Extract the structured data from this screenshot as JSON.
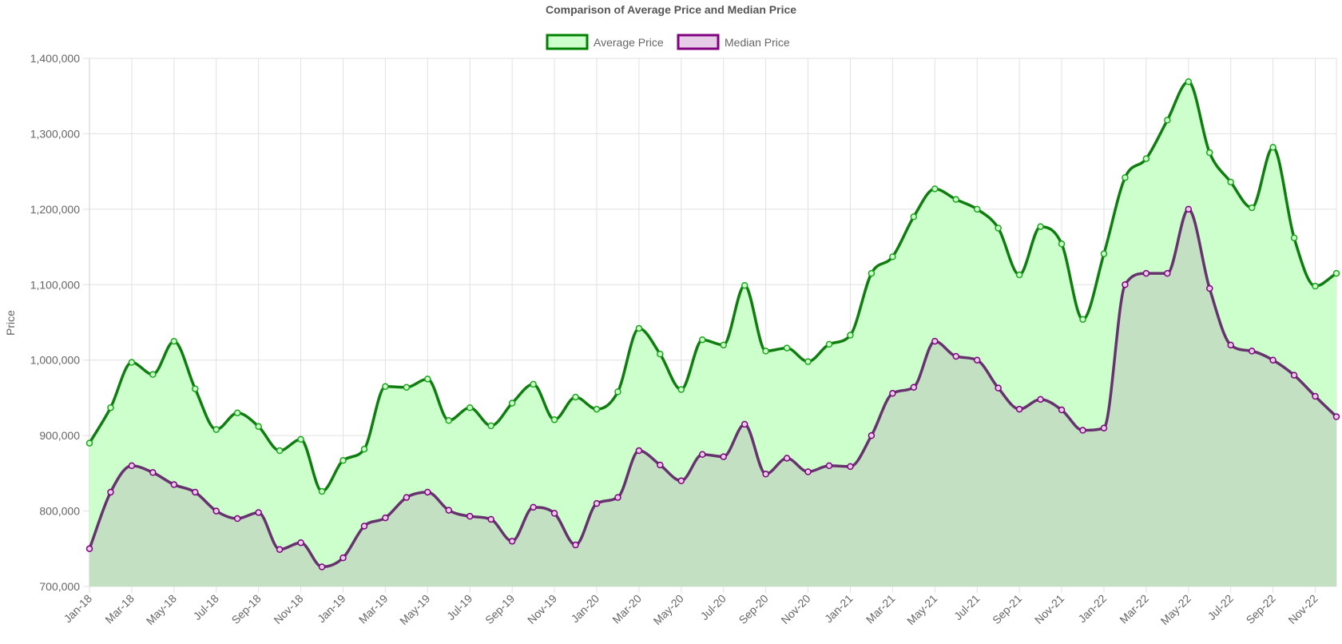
{
  "chart_data": {
    "type": "area",
    "title": "Comparison of Average Price and Median Price",
    "xlabel": "",
    "ylabel": "Price",
    "ylim": [
      700000,
      1400000
    ],
    "yticks": [
      700000,
      800000,
      900000,
      1000000,
      1100000,
      1200000,
      1300000,
      1400000
    ],
    "grid": true,
    "legend_position": "top-center",
    "x": [
      "Jan-18",
      "Feb-18",
      "Mar-18",
      "Apr-18",
      "May-18",
      "Jun-18",
      "Jul-18",
      "Aug-18",
      "Sep-18",
      "Oct-18",
      "Nov-18",
      "Dec-18",
      "Jan-19",
      "Feb-19",
      "Mar-19",
      "Apr-19",
      "May-19",
      "Jun-19",
      "Jul-19",
      "Aug-19",
      "Sep-19",
      "Oct-19",
      "Nov-19",
      "Dec-19",
      "Jan-20",
      "Feb-20",
      "Mar-20",
      "Apr-20",
      "May-20",
      "Jun-20",
      "Jul-20",
      "Aug-20",
      "Sep-20",
      "Oct-20",
      "Nov-20",
      "Dec-20",
      "Jan-21",
      "Feb-21",
      "Mar-21",
      "Apr-21",
      "May-21",
      "Jun-21",
      "Jul-21",
      "Aug-21",
      "Sep-21",
      "Oct-21",
      "Nov-21",
      "Dec-21",
      "Jan-22",
      "Feb-22",
      "Mar-22",
      "Apr-22",
      "May-22",
      "Jun-22",
      "Jul-22",
      "Aug-22",
      "Sep-22",
      "Oct-22",
      "Nov-22",
      "Dec-22"
    ],
    "xtick_labels": [
      "Jan-18",
      "Mar-18",
      "May-18",
      "Jul-18",
      "Sep-18",
      "Nov-18",
      "Jan-19",
      "Mar-19",
      "May-19",
      "Jul-19",
      "Sep-19",
      "Nov-19",
      "Jan-20",
      "Mar-20",
      "May-20",
      "Jul-20",
      "Sep-20",
      "Nov-20",
      "Jan-21",
      "Mar-21",
      "May-21",
      "Jul-21",
      "Sep-21",
      "Nov-21",
      "Jan-22",
      "Mar-22",
      "May-22",
      "Jul-22",
      "Sep-22",
      "Nov-22"
    ],
    "series": [
      {
        "name": "Average Price",
        "color": "#008000",
        "fill": "#ccffcc",
        "values": [
          890000,
          937000,
          997000,
          981000,
          1025000,
          962000,
          908000,
          930000,
          912000,
          880000,
          895000,
          826000,
          867000,
          882000,
          965000,
          964000,
          975000,
          920000,
          937000,
          913000,
          943000,
          968000,
          921000,
          951000,
          935000,
          958000,
          1042000,
          1008000,
          961000,
          1027000,
          1020000,
          1099000,
          1012000,
          1016000,
          998000,
          1021000,
          1033000,
          1115000,
          1137000,
          1190000,
          1227000,
          1213000,
          1200000,
          1175000,
          1113000,
          1177000,
          1154000,
          1054000,
          1141000,
          1242000,
          1267000,
          1318000,
          1369000,
          1275000,
          1236000,
          1202000,
          1282000,
          1162000,
          1098000,
          1115000
        ]
      },
      {
        "name": "Median Price",
        "color": "#800080",
        "fill": "#e6cce6",
        "values": [
          750000,
          825000,
          860000,
          851000,
          835000,
          825000,
          800000,
          790000,
          798000,
          749000,
          758000,
          726000,
          738000,
          780000,
          791000,
          818000,
          825000,
          801000,
          793000,
          789000,
          760000,
          805000,
          797000,
          755000,
          810000,
          818000,
          880000,
          861000,
          840000,
          875000,
          872000,
          915000,
          849000,
          870000,
          852000,
          860000,
          859000,
          900000,
          956000,
          964000,
          1025000,
          1005000,
          1000000,
          963000,
          935000,
          948000,
          934000,
          907000,
          910000,
          1100000,
          1115000,
          1115000,
          1200000,
          1095000,
          1020000,
          1012000,
          1000000,
          980000,
          952000,
          925000
        ]
      }
    ]
  }
}
